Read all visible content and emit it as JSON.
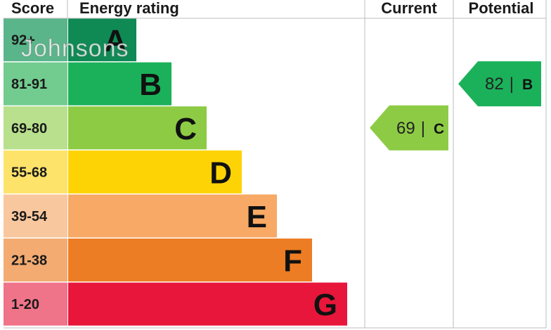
{
  "chart_data": {
    "type": "table",
    "headers": {
      "score": "Score",
      "rating": "Energy rating",
      "current": "Current",
      "potential": "Potential"
    },
    "bands": [
      {
        "score": "92+",
        "letter": "A",
        "color": "#0f8a55",
        "score_bg": "#5ab58a"
      },
      {
        "score": "81-91",
        "letter": "B",
        "color": "#1bb15a",
        "score_bg": "#72cc8f"
      },
      {
        "score": "69-80",
        "letter": "C",
        "color": "#8dcb45",
        "score_bg": "#b8e08d"
      },
      {
        "score": "55-68",
        "letter": "D",
        "color": "#fed305",
        "score_bg": "#fde36a"
      },
      {
        "score": "39-54",
        "letter": "E",
        "color": "#f7a965",
        "score_bg": "#f9c79d"
      },
      {
        "score": "21-38",
        "letter": "F",
        "color": "#ed7d24",
        "score_bg": "#f3ab72"
      },
      {
        "score": "1-20",
        "letter": "G",
        "color": "#e8163a",
        "score_bg": "#f07489"
      }
    ],
    "current": {
      "value": 69,
      "letter": "C",
      "color": "#8dcb45"
    },
    "potential": {
      "value": 82,
      "letter": "B",
      "color": "#1bb15a"
    },
    "separator": "|"
  },
  "watermark": "Johnsons"
}
